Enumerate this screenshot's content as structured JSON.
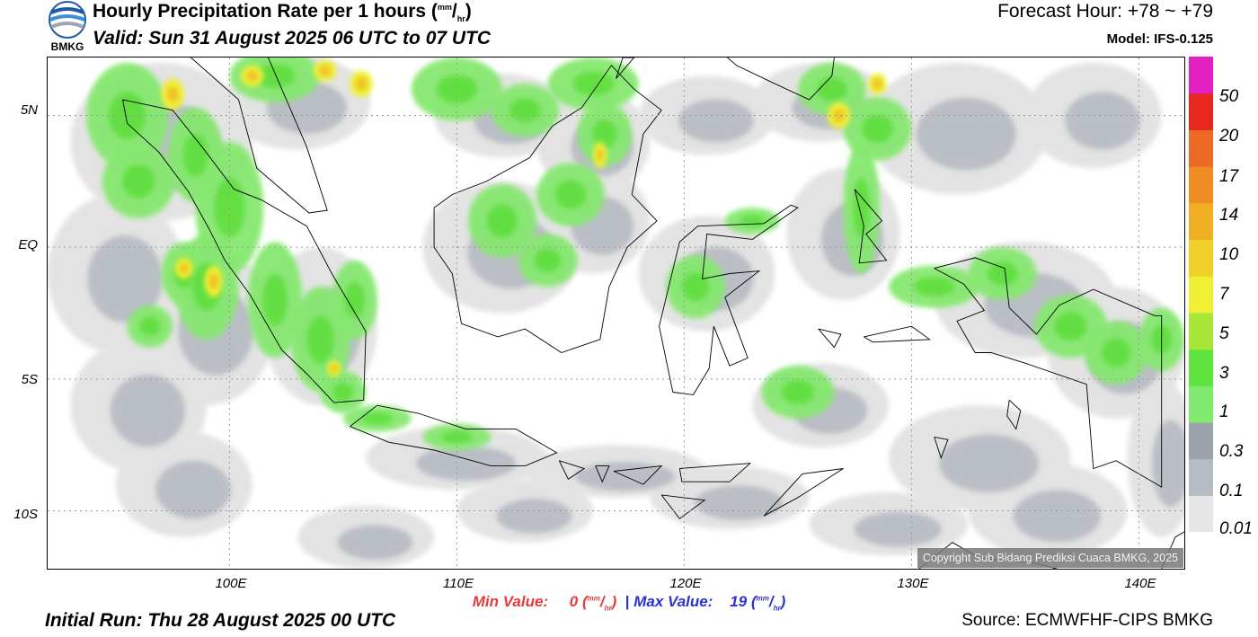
{
  "header": {
    "title_main": "Hourly Precipitation Rate per 1 hours (",
    "unit_num": "mm",
    "unit_den": "hr",
    "title_close": ")",
    "valid": "Valid: Sun 31 August 2025 06 UTC to 07 UTC",
    "forecast_hour": "Forecast Hour: +78 ~ +79",
    "model": "Model: IFS-0.125",
    "logo_text": "BMKG"
  },
  "map": {
    "lat_labels": [
      "5N",
      "EQ",
      "5S",
      "10S"
    ],
    "lon_labels": [
      "100E",
      "110E",
      "120E",
      "130E",
      "140E"
    ],
    "extent": {
      "lon_min": 92,
      "lon_max": 142,
      "lat_min": -12.2,
      "lat_max": 7.2
    },
    "copyright": "Copyright Sub Bidang Prediksi Cuaca BMKG, 2025"
  },
  "colorbar": {
    "labels": [
      "0.01",
      "0.1",
      "0.3",
      "1",
      "3",
      "5",
      "7",
      "10",
      "14",
      "17",
      "20",
      "50"
    ],
    "colors": [
      "#e6e6e6",
      "#b7bcc4",
      "#9da3ad",
      "#7fea6e",
      "#5fe33f",
      "#a7e638",
      "#eff034",
      "#f0d028",
      "#f0ae22",
      "#ef8d22",
      "#ec6a23",
      "#e8281f",
      "#e41fc0"
    ]
  },
  "footer": {
    "min_label": "Min Value:",
    "min_value": "0",
    "max_label": "Max Value:",
    "max_value": "19",
    "unit_num": "mm",
    "unit_den": "hr",
    "separator": "|",
    "initial_run": "Initial Run: Thu 28 August 2025 00 UTC",
    "source": "Source: ECMWFHF-CIPS BMKG"
  }
}
